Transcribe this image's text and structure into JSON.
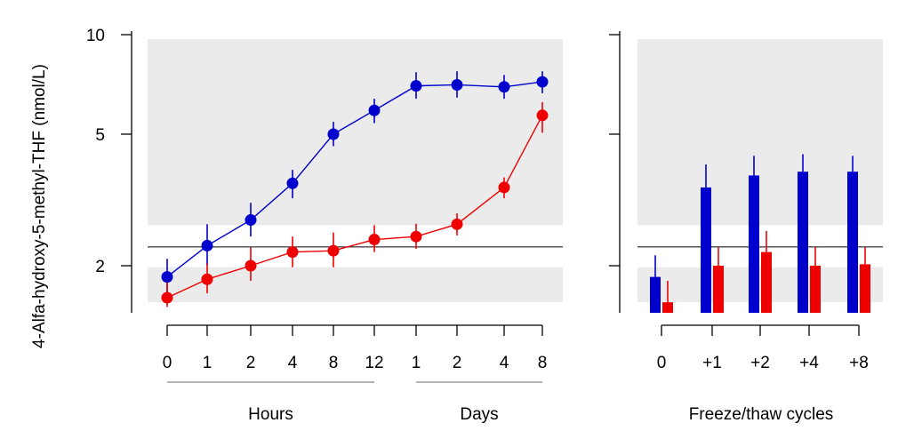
{
  "chart_data": [
    {
      "type": "line",
      "ylabel": "4-Alfa-hydroxy-5-methyl-THF (nmol/L)",
      "yscale": "log",
      "yticks": [
        2,
        5,
        10
      ],
      "ytick_labels": [
        "2",
        "5",
        "10"
      ],
      "categories": [
        "0",
        "1",
        "2",
        "4",
        "8",
        "12",
        "1",
        "2",
        "4",
        "8"
      ],
      "groups": [
        {
          "label": "Hours",
          "from": 0,
          "to": 5
        },
        {
          "label": "Days",
          "from": 6,
          "to": 9
        }
      ],
      "reference_line": 2.28,
      "shaded_bands": [
        [
          1.55,
          1.98
        ],
        [
          2.65,
          9.7
        ]
      ],
      "series": [
        {
          "color": "#0000cc",
          "values": [
            1.85,
            2.3,
            2.75,
            3.55,
            5.0,
            5.9,
            7.0,
            7.05,
            6.95,
            7.2
          ],
          "err_low": [
            1.65,
            2.0,
            2.45,
            3.2,
            4.6,
            5.4,
            6.4,
            6.45,
            6.4,
            6.65
          ],
          "err_high": [
            2.1,
            2.67,
            3.1,
            3.9,
            5.45,
            6.4,
            7.7,
            7.75,
            7.55,
            7.75
          ]
        },
        {
          "color": "#ee0000",
          "values": [
            1.6,
            1.82,
            2.0,
            2.2,
            2.22,
            2.4,
            2.45,
            2.67,
            3.45,
            5.7
          ],
          "err_low": [
            1.5,
            1.65,
            1.8,
            1.98,
            1.98,
            2.2,
            2.25,
            2.47,
            3.2,
            5.05
          ],
          "err_high": [
            1.78,
            2.03,
            2.27,
            2.45,
            2.52,
            2.65,
            2.68,
            2.88,
            3.7,
            6.25
          ]
        }
      ]
    },
    {
      "type": "bar",
      "xlabel": "Freeze/thaw cycles",
      "categories": [
        "0",
        "+1",
        "+2",
        "+4",
        "+8"
      ],
      "reference_line": 2.28,
      "shaded_bands": [
        [
          1.55,
          1.98
        ],
        [
          2.65,
          9.7
        ]
      ],
      "series": [
        {
          "color": "#0000cc",
          "values": [
            1.85,
            3.45,
            3.75,
            3.85,
            3.85
          ],
          "err_high": [
            2.15,
            4.05,
            4.3,
            4.35,
            4.3
          ]
        },
        {
          "color": "#ee0000",
          "values": [
            1.55,
            2.0,
            2.2,
            2.0,
            2.02
          ],
          "err_high": [
            1.8,
            2.27,
            2.55,
            2.27,
            2.27
          ]
        }
      ]
    }
  ]
}
